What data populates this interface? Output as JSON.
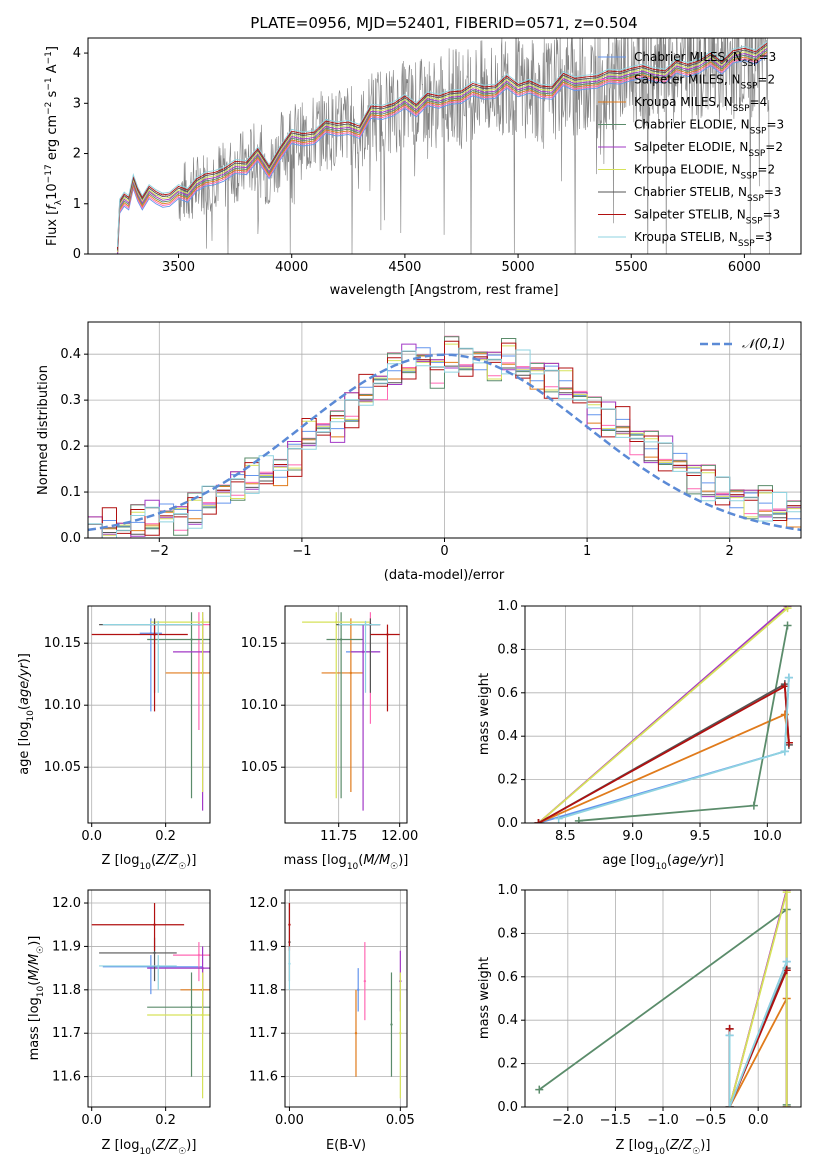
{
  "chart_data": [
    {
      "type": "line",
      "title": "PLATE=0956, MJD=52401, FIBERID=0571, z=0.504",
      "xlabel": "wavelength [Angstrom, rest frame]",
      "ylabel": "Flux [f_λ 10^-17 erg cm^-2 s^-1 A^-1]",
      "xlim": [
        3100,
        6250
      ],
      "ylim": [
        0,
        4.3
      ],
      "xticks": [
        3500,
        4000,
        4500,
        5000,
        5500,
        6000
      ],
      "yticks": [
        0,
        1,
        2,
        3,
        4
      ],
      "legend_position": "right",
      "series": [
        {
          "name": "Chabrier MILES, N_SSP=3",
          "color": "#6495ed"
        },
        {
          "name": "Salpeter MILES, N_SSP=2",
          "color": "#ff69b4"
        },
        {
          "name": "Kroupa MILES, N_SSP=4",
          "color": "#e07b1c"
        },
        {
          "name": "Chabrier ELODIE, N_SSP=3",
          "color": "#5b8c6b"
        },
        {
          "name": "Salpeter ELODIE, N_SSP=2",
          "color": "#a239c6"
        },
        {
          "name": "Kroupa ELODIE, N_SSP=2",
          "color": "#d6e25a"
        },
        {
          "name": "Chabrier STELIB, N_SSP=3",
          "color": "#555555"
        },
        {
          "name": "Salpeter STELIB, N_SSP=3",
          "color": "#b11010"
        },
        {
          "name": "Kroupa STELIB, N_SSP=3",
          "color": "#8fd3e0"
        }
      ],
      "model_curve": {
        "x": [
          3230,
          3240,
          3260,
          3280,
          3300,
          3320,
          3340,
          3370,
          3400,
          3430,
          3460,
          3500,
          3540,
          3580,
          3620,
          3660,
          3700,
          3750,
          3800,
          3850,
          3900,
          3950,
          4000,
          4050,
          4100,
          4150,
          4200,
          4250,
          4300,
          4350,
          4400,
          4450,
          4500,
          4550,
          4600,
          4650,
          4700,
          4750,
          4800,
          4850,
          4900,
          4950,
          5000,
          5050,
          5100,
          5150,
          5200,
          5250,
          5300,
          5350,
          5400,
          5450,
          5500,
          5550,
          5600,
          5650,
          5700,
          5750,
          5800,
          5850,
          5900,
          5950,
          6000,
          6050,
          6100
        ],
        "y": [
          0,
          0.95,
          1.05,
          1.1,
          1.4,
          1.15,
          1.1,
          1.2,
          1.1,
          1.15,
          1.05,
          1.2,
          1.25,
          1.35,
          1.45,
          1.6,
          1.55,
          1.7,
          1.8,
          1.95,
          1.6,
          2.1,
          2.3,
          2.25,
          2.4,
          2.5,
          2.45,
          2.6,
          2.4,
          2.8,
          2.9,
          2.85,
          3.0,
          2.95,
          3.05,
          3.0,
          3.2,
          3.1,
          3.25,
          3.3,
          3.2,
          3.4,
          3.35,
          3.3,
          3.2,
          3.3,
          3.45,
          3.35,
          3.5,
          3.4,
          3.5,
          3.6,
          3.55,
          3.6,
          3.65,
          3.5,
          3.7,
          3.75,
          3.7,
          3.85,
          3.8,
          3.9,
          3.95,
          4.0,
          4.05
        ]
      }
    },
    {
      "type": "line",
      "xlabel": "(data-model)/error",
      "ylabel": "Normed distribution",
      "xlim": [
        -2.5,
        2.5
      ],
      "ylim": [
        0,
        0.47
      ],
      "xticks": [
        -2,
        -1,
        0,
        1,
        2
      ],
      "yticks": [
        0.0,
        0.1,
        0.2,
        0.3,
        0.4
      ],
      "legend": "𝒩(0,1)",
      "grid": true,
      "reference": {
        "name": "𝒩(0,1)",
        "function": "gaussian",
        "mu": 0,
        "sigma": 1,
        "color": "#5b8ad6"
      },
      "histogram_bins": [
        -2.5,
        -2.4,
        -2.3,
        -2.2,
        -2.1,
        -2.0,
        -1.9,
        -1.8,
        -1.7,
        -1.6,
        -1.5,
        -1.4,
        -1.3,
        -1.2,
        -1.1,
        -1.0,
        -0.9,
        -0.8,
        -0.7,
        -0.6,
        -0.5,
        -0.4,
        -0.3,
        -0.2,
        -0.1,
        0.0,
        0.1,
        0.2,
        0.3,
        0.4,
        0.5,
        0.6,
        0.7,
        0.8,
        0.9,
        1.0,
        1.1,
        1.2,
        1.3,
        1.4,
        1.5,
        1.6,
        1.7,
        1.8,
        1.9,
        2.0,
        2.1,
        2.2,
        2.3,
        2.4,
        2.5
      ],
      "histogram_mean": [
        0.01,
        0.02,
        0.02,
        0.04,
        0.04,
        0.05,
        0.05,
        0.06,
        0.08,
        0.1,
        0.12,
        0.13,
        0.14,
        0.15,
        0.18,
        0.22,
        0.24,
        0.25,
        0.28,
        0.31,
        0.34,
        0.37,
        0.38,
        0.39,
        0.37,
        0.4,
        0.38,
        0.39,
        0.38,
        0.39,
        0.37,
        0.36,
        0.35,
        0.33,
        0.31,
        0.28,
        0.26,
        0.24,
        0.22,
        0.2,
        0.18,
        0.16,
        0.14,
        0.12,
        0.1,
        0.09,
        0.08,
        0.07,
        0.06,
        0.06
      ],
      "histogram_offsets": [
        0.0,
        0.015,
        -0.012,
        0.02,
        -0.018,
        0.01,
        -0.008,
        0.022,
        -0.015
      ]
    },
    {
      "type": "scatter",
      "xlabel": "Z [log10(Z/Z☉)]",
      "ylabel": "age  [log10(age/yr)]",
      "xlim": [
        -0.01,
        0.32
      ],
      "ylim": [
        10.005,
        10.18
      ],
      "xticks": [
        0.0,
        0.2
      ],
      "yticks": [
        10.05,
        10.1,
        10.15
      ],
      "points": [
        {
          "x": 0.16,
          "y": 10.158,
          "xerr": [
            0.13,
            0.19
          ],
          "yerr": [
            10.095,
            10.17
          ],
          "color": "#6495ed"
        },
        {
          "x": 0.29,
          "y": 10.165,
          "xerr": [
            0.17,
            0.32
          ],
          "yerr": [
            10.08,
            10.175
          ],
          "color": "#ff69b4"
        },
        {
          "x": 0.3,
          "y": 10.126,
          "xerr": [
            0.2,
            0.32
          ],
          "yerr": [
            10.08,
            10.17
          ],
          "color": "#e07b1c"
        },
        {
          "x": 0.27,
          "y": 10.153,
          "xerr": [
            0.15,
            0.32
          ],
          "yerr": [
            10.025,
            10.175
          ],
          "color": "#5b8c6b"
        },
        {
          "x": 0.3,
          "y": 10.143,
          "xerr": [
            0.22,
            0.32
          ],
          "yerr": [
            10.015,
            10.175
          ],
          "color": "#a239c6"
        },
        {
          "x": 0.3,
          "y": 10.167,
          "xerr": [
            0.16,
            0.32
          ],
          "yerr": [
            10.03,
            10.175
          ],
          "color": "#d6e25a"
        },
        {
          "x": 0.17,
          "y": 10.165,
          "xerr": [
            0.02,
            0.3
          ],
          "yerr": [
            10.11,
            10.17
          ],
          "color": "#555555"
        },
        {
          "x": 0.17,
          "y": 10.157,
          "xerr": [
            0.0,
            0.26
          ],
          "yerr": [
            10.095,
            10.165
          ],
          "color": "#b11010"
        },
        {
          "x": 0.18,
          "y": 10.165,
          "xerr": [
            0.03,
            0.3
          ],
          "yerr": [
            10.11,
            10.168
          ],
          "color": "#8fd3e0"
        }
      ]
    },
    {
      "type": "scatter",
      "xlabel": "mass [log10(M/M☉)]",
      "ylabel": "",
      "xlim": [
        11.53,
        12.03
      ],
      "ylim": [
        10.005,
        10.18
      ],
      "xticks": [
        11.75,
        12.0
      ],
      "yticks": [
        10.05,
        10.1,
        10.15
      ],
      "points": [
        {
          "x": 11.85,
          "y": 10.143,
          "xerr": [
            11.78,
            11.92
          ],
          "yerr": [
            10.1,
            10.165
          ],
          "color": "#6495ed"
        },
        {
          "x": 11.88,
          "y": 10.165,
          "xerr": [
            11.83,
            11.92
          ],
          "yerr": [
            10.085,
            10.175
          ],
          "color": "#ff69b4"
        },
        {
          "x": 11.8,
          "y": 10.126,
          "xerr": [
            11.68,
            11.85
          ],
          "yerr": [
            10.03,
            10.17
          ],
          "color": "#e07b1c"
        },
        {
          "x": 11.76,
          "y": 10.153,
          "xerr": [
            11.7,
            11.85
          ],
          "yerr": [
            10.025,
            10.175
          ],
          "color": "#5b8c6b"
        },
        {
          "x": 11.85,
          "y": 10.143,
          "xerr": [
            11.8,
            11.92
          ],
          "yerr": [
            10.015,
            10.165
          ],
          "color": "#a239c6"
        },
        {
          "x": 11.74,
          "y": 10.167,
          "xerr": [
            11.6,
            11.88
          ],
          "yerr": [
            10.025,
            10.175
          ],
          "color": "#d6e25a"
        },
        {
          "x": 11.88,
          "y": 10.165,
          "xerr": [
            11.74,
            11.92
          ],
          "yerr": [
            10.11,
            10.17
          ],
          "color": "#555555"
        },
        {
          "x": 11.95,
          "y": 10.157,
          "xerr": [
            11.88,
            12.0
          ],
          "yerr": [
            10.095,
            10.165
          ],
          "color": "#b11010"
        },
        {
          "x": 11.86,
          "y": 10.165,
          "xerr": [
            11.75,
            11.92
          ],
          "yerr": [
            10.11,
            10.168
          ],
          "color": "#8fd3e0"
        }
      ]
    },
    {
      "type": "line",
      "xlabel": "age  [log10(age/yr)]",
      "ylabel": "mass weight",
      "xlim": [
        8.2,
        10.25
      ],
      "ylim": [
        0,
        1.0
      ],
      "xticks": [
        8.5,
        9.0,
        9.5,
        10.0
      ],
      "yticks": [
        0.0,
        0.2,
        0.4,
        0.6,
        0.8,
        1.0
      ],
      "grid": true,
      "series": [
        {
          "color": "#6495ed",
          "x": [
            8.3,
            10.13,
            10.16
          ],
          "y": [
            0.0,
            0.33,
            0.67
          ]
        },
        {
          "color": "#ff69b4",
          "x": [
            8.3,
            10.15
          ],
          "y": [
            0.0,
            1.0
          ]
        },
        {
          "color": "#e07b1c",
          "x": [
            8.3,
            10.13,
            10.16
          ],
          "y": [
            0.0,
            0.5,
            0.37
          ]
        },
        {
          "color": "#5b8c6b",
          "x": [
            8.6,
            9.9,
            10.15
          ],
          "y": [
            0.01,
            0.08,
            0.91
          ]
        },
        {
          "color": "#a239c6",
          "x": [
            8.3,
            10.15
          ],
          "y": [
            0.0,
            1.0
          ]
        },
        {
          "color": "#d6e25a",
          "x": [
            8.3,
            10.15
          ],
          "y": [
            0.0,
            0.99
          ]
        },
        {
          "color": "#555555",
          "x": [
            8.3,
            10.13,
            10.16
          ],
          "y": [
            0.0,
            0.64,
            0.36
          ]
        },
        {
          "color": "#b11010",
          "x": [
            8.3,
            10.13,
            10.16
          ],
          "y": [
            0.0,
            0.63,
            0.37
          ]
        },
        {
          "color": "#8fd3e0",
          "x": [
            8.45,
            10.13,
            10.16
          ],
          "y": [
            0.02,
            0.33,
            0.67
          ]
        }
      ]
    },
    {
      "type": "scatter",
      "xlabel": "Z [log10(Z/Z☉)]",
      "ylabel": "mass [log10(M/M☉)]",
      "xlim": [
        -0.01,
        0.32
      ],
      "ylim": [
        11.53,
        12.03
      ],
      "xticks": [
        0.0,
        0.2
      ],
      "yticks": [
        11.6,
        11.7,
        11.8,
        11.9,
        12.0
      ],
      "points": [
        {
          "x": 0.16,
          "y": 11.853,
          "xerr": [
            0.03,
            0.3
          ],
          "yerr": [
            11.79,
            11.88
          ],
          "color": "#6495ed"
        },
        {
          "x": 0.29,
          "y": 11.88,
          "xerr": [
            0.22,
            0.32
          ],
          "yerr": [
            11.82,
            11.91
          ],
          "color": "#ff69b4"
        },
        {
          "x": 0.3,
          "y": 11.8,
          "xerr": [
            0.24,
            0.32
          ],
          "yerr": [
            11.7,
            11.85
          ],
          "color": "#e07b1c"
        },
        {
          "x": 0.27,
          "y": 11.76,
          "xerr": [
            0.15,
            0.32
          ],
          "yerr": [
            11.6,
            11.84
          ],
          "color": "#5b8c6b"
        },
        {
          "x": 0.3,
          "y": 11.85,
          "xerr": [
            0.15,
            0.32
          ],
          "yerr": [
            11.74,
            11.9
          ],
          "color": "#a239c6"
        },
        {
          "x": 0.3,
          "y": 11.742,
          "xerr": [
            0.15,
            0.32
          ],
          "yerr": [
            11.55,
            11.84
          ],
          "color": "#d6e25a"
        },
        {
          "x": 0.17,
          "y": 11.885,
          "xerr": [
            0.02,
            0.23
          ],
          "yerr": [
            11.82,
            11.92
          ],
          "color": "#555555"
        },
        {
          "x": 0.17,
          "y": 11.95,
          "xerr": [
            0.0,
            0.25
          ],
          "yerr": [
            11.89,
            12.0
          ],
          "color": "#b11010"
        },
        {
          "x": 0.18,
          "y": 11.855,
          "xerr": [
            0.02,
            0.23
          ],
          "yerr": [
            11.8,
            11.88
          ],
          "color": "#8fd3e0"
        }
      ]
    },
    {
      "type": "scatter",
      "xlabel": "E(B-V)",
      "ylabel": "",
      "xlim": [
        -0.002,
        0.053
      ],
      "ylim": [
        11.53,
        12.03
      ],
      "xticks": [
        0.0,
        0.05
      ],
      "yticks": [
        11.6,
        11.7,
        11.8,
        11.9,
        12.0
      ],
      "points": [
        {
          "x": 0.031,
          "y": 11.8,
          "yerr": [
            11.75,
            11.85
          ],
          "color": "#6495ed"
        },
        {
          "x": 0.034,
          "y": 11.82,
          "yerr": [
            11.73,
            11.91
          ],
          "color": "#ff69b4"
        },
        {
          "x": 0.03,
          "y": 11.7,
          "yerr": [
            11.6,
            11.8
          ],
          "color": "#e07b1c"
        },
        {
          "x": 0.046,
          "y": 11.72,
          "yerr": [
            11.6,
            11.84
          ],
          "color": "#5b8c6b"
        },
        {
          "x": 0.05,
          "y": 11.82,
          "yerr": [
            11.75,
            11.89
          ],
          "color": "#a239c6"
        },
        {
          "x": 0.05,
          "y": 11.7,
          "yerr": [
            11.55,
            11.84
          ],
          "color": "#d6e25a"
        },
        {
          "x": 0.0,
          "y": 11.91,
          "yerr": [
            11.82,
            12.0
          ],
          "color": "#555555"
        },
        {
          "x": 0.0,
          "y": 11.95,
          "yerr": [
            11.89,
            12.0
          ],
          "color": "#b11010"
        },
        {
          "x": 0.0,
          "y": 11.86,
          "yerr": [
            11.8,
            11.9
          ],
          "color": "#8fd3e0"
        }
      ]
    },
    {
      "type": "line",
      "xlabel": "Z [log10(Z/Z☉)]",
      "ylabel": "mass weight",
      "xlim": [
        -2.45,
        0.45
      ],
      "ylim": [
        0,
        1.0
      ],
      "xticks": [
        -2.0,
        -1.5,
        -1.0,
        -0.5,
        0.0
      ],
      "yticks": [
        0.0,
        0.2,
        0.4,
        0.6,
        0.8,
        1.0
      ],
      "grid": true,
      "series": [
        {
          "color": "#6495ed",
          "x": [
            -0.3,
            -0.3,
            0.3
          ],
          "y": [
            0.33,
            0.0,
            0.67
          ]
        },
        {
          "color": "#ff69b4",
          "x": [
            -0.3,
            0.3,
            0.3
          ],
          "y": [
            0.0,
            1.0,
            0.0
          ]
        },
        {
          "color": "#e07b1c",
          "x": [
            -0.3,
            0.3,
            0.3
          ],
          "y": [
            0.0,
            0.5,
            0.0
          ]
        },
        {
          "color": "#5b8c6b",
          "x": [
            -2.3,
            0.3,
            0.3
          ],
          "y": [
            0.08,
            0.91,
            0.01
          ]
        },
        {
          "color": "#a239c6",
          "x": [
            -0.3,
            0.3,
            0.3
          ],
          "y": [
            0.0,
            1.0,
            0.0
          ]
        },
        {
          "color": "#d6e25a",
          "x": [
            -0.3,
            0.3,
            0.3
          ],
          "y": [
            0.0,
            0.99,
            0.0
          ]
        },
        {
          "color": "#555555",
          "x": [
            -0.3,
            -0.3,
            0.3
          ],
          "y": [
            0.36,
            0.0,
            0.64
          ]
        },
        {
          "color": "#b11010",
          "x": [
            -0.3,
            -0.3,
            0.3
          ],
          "y": [
            0.36,
            0.0,
            0.63
          ]
        },
        {
          "color": "#8fd3e0",
          "x": [
            -0.3,
            -0.3,
            0.3
          ],
          "y": [
            0.33,
            0.0,
            0.67
          ]
        }
      ]
    }
  ]
}
